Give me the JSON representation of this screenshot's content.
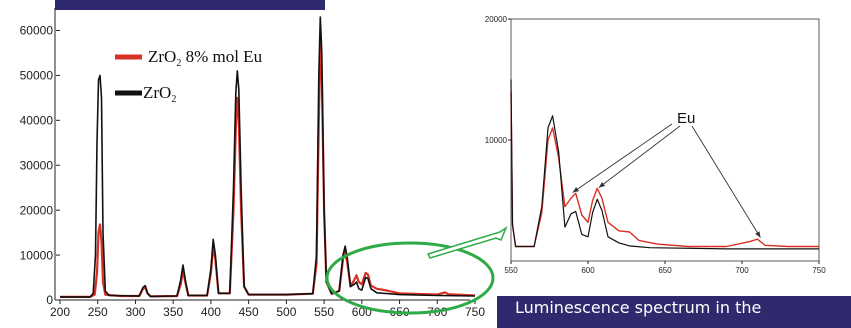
{
  "chart_data": [
    {
      "type": "line",
      "xlim": [
        200,
        750
      ],
      "ylim": [
        0,
        65000
      ],
      "x_ticks": [
        200,
        250,
        300,
        350,
        400,
        450,
        500,
        550,
        600,
        650,
        700,
        750
      ],
      "y_ticks": [
        0,
        10000,
        20000,
        30000,
        40000,
        50000,
        60000
      ],
      "grid": false,
      "legend_position": "top-left",
      "series": [
        {
          "name": "ZrO2 8% mol Eu",
          "color": "#d93025",
          "points": [
            [
              200,
              700
            ],
            [
              240,
              700
            ],
            [
              246,
              1200
            ],
            [
              249,
              6000
            ],
            [
              251,
              15000
            ],
            [
              253,
              16800
            ],
            [
              255,
              13000
            ],
            [
              257,
              4000
            ],
            [
              260,
              1200
            ],
            [
              280,
              900
            ],
            [
              305,
              900
            ],
            [
              310,
              2500
            ],
            [
              313,
              2800
            ],
            [
              316,
              1500
            ],
            [
              320,
              800
            ],
            [
              355,
              900
            ],
            [
              360,
              3500
            ],
            [
              363,
              6500
            ],
            [
              366,
              4000
            ],
            [
              370,
              1000
            ],
            [
              395,
              1000
            ],
            [
              400,
              6000
            ],
            [
              403,
              12000
            ],
            [
              406,
              9000
            ],
            [
              410,
              1500
            ],
            [
              425,
              1500
            ],
            [
              430,
              20000
            ],
            [
              433,
              38000
            ],
            [
              435,
              45000
            ],
            [
              437,
              40000
            ],
            [
              440,
              20000
            ],
            [
              444,
              3000
            ],
            [
              450,
              1200
            ],
            [
              500,
              1200
            ],
            [
              535,
              1400
            ],
            [
              540,
              8000
            ],
            [
              543,
              40000
            ],
            [
              545,
              57000
            ],
            [
              547,
              50000
            ],
            [
              550,
              20000
            ],
            [
              553,
              4000
            ],
            [
              560,
              1400
            ],
            [
              570,
              2000
            ],
            [
              575,
              9000
            ],
            [
              578,
              11000
            ],
            [
              581,
              8000
            ],
            [
              585,
              3000
            ],
            [
              590,
              4500
            ],
            [
              593,
              5500
            ],
            [
              596,
              4000
            ],
            [
              600,
              3500
            ],
            [
              605,
              6000
            ],
            [
              608,
              5700
            ],
            [
              612,
              3200
            ],
            [
              620,
              2500
            ],
            [
              630,
              2200
            ],
            [
              650,
              1500
            ],
            [
              700,
              1200
            ],
            [
              710,
              1700
            ],
            [
              715,
              1300
            ],
            [
              750,
              1000
            ]
          ]
        },
        {
          "name": "ZrO2",
          "color": "#111111",
          "points": [
            [
              200,
              700
            ],
            [
              240,
              700
            ],
            [
              244,
              1500
            ],
            [
              247,
              10000
            ],
            [
              249,
              35000
            ],
            [
              251,
              49000
            ],
            [
              253,
              50000
            ],
            [
              255,
              45000
            ],
            [
              257,
              15000
            ],
            [
              260,
              2000
            ],
            [
              265,
              1000
            ],
            [
              305,
              900
            ],
            [
              310,
              2800
            ],
            [
              313,
              3200
            ],
            [
              316,
              1500
            ],
            [
              320,
              800
            ],
            [
              355,
              900
            ],
            [
              360,
              4500
            ],
            [
              363,
              7800
            ],
            [
              366,
              4500
            ],
            [
              370,
              1000
            ],
            [
              395,
              1000
            ],
            [
              400,
              7000
            ],
            [
              403,
              13500
            ],
            [
              406,
              10000
            ],
            [
              410,
              1500
            ],
            [
              425,
              1500
            ],
            [
              430,
              25000
            ],
            [
              433,
              46000
            ],
            [
              435,
              51000
            ],
            [
              437,
              47000
            ],
            [
              440,
              25000
            ],
            [
              444,
              3000
            ],
            [
              450,
              1200
            ],
            [
              500,
              1200
            ],
            [
              535,
              1400
            ],
            [
              540,
              10000
            ],
            [
              543,
              50000
            ],
            [
              545,
              63000
            ],
            [
              547,
              55000
            ],
            [
              550,
              20000
            ],
            [
              553,
              4000
            ],
            [
              560,
              1400
            ],
            [
              570,
              2000
            ],
            [
              575,
              10000
            ],
            [
              578,
              12000
            ],
            [
              581,
              9000
            ],
            [
              585,
              3000
            ],
            [
              590,
              3500
            ],
            [
              593,
              4000
            ],
            [
              596,
              2500
            ],
            [
              600,
              2200
            ],
            [
              605,
              5000
            ],
            [
              608,
              4800
            ],
            [
              612,
              2500
            ],
            [
              620,
              1600
            ],
            [
              650,
              1200
            ],
            [
              700,
              1000
            ],
            [
              750,
              900
            ]
          ]
        }
      ]
    },
    {
      "type": "line",
      "xlim": [
        550,
        750
      ],
      "ylim": [
        0,
        20000
      ],
      "x_ticks": [
        550,
        600,
        650,
        700,
        750
      ],
      "y_ticks": [
        10000,
        20000
      ],
      "grid": false,
      "annotation": "Eu",
      "annotation_targets_x": [
        590,
        607,
        712
      ],
      "series": [
        {
          "name": "ZrO2 8% mol Eu",
          "color": "#d93025",
          "points": [
            [
              550,
              14000
            ],
            [
              551,
              3000
            ],
            [
              553,
              1200
            ],
            [
              565,
              1200
            ],
            [
              570,
              4000
            ],
            [
              574,
              10000
            ],
            [
              577,
              11000
            ],
            [
              581,
              8500
            ],
            [
              585,
              4500
            ],
            [
              589,
              5200
            ],
            [
              592,
              5600
            ],
            [
              596,
              3800
            ],
            [
              600,
              3200
            ],
            [
              603,
              5000
            ],
            [
              606,
              6000
            ],
            [
              609,
              5200
            ],
            [
              613,
              3200
            ],
            [
              620,
              2500
            ],
            [
              627,
              2400
            ],
            [
              633,
              1700
            ],
            [
              645,
              1400
            ],
            [
              665,
              1200
            ],
            [
              690,
              1200
            ],
            [
              705,
              1600
            ],
            [
              710,
              1800
            ],
            [
              715,
              1300
            ],
            [
              730,
              1200
            ],
            [
              750,
              1200
            ]
          ]
        },
        {
          "name": "ZrO2",
          "color": "#111111",
          "points": [
            [
              550,
              15000
            ],
            [
              551,
              3000
            ],
            [
              553,
              1200
            ],
            [
              565,
              1200
            ],
            [
              570,
              4500
            ],
            [
              574,
              11000
            ],
            [
              577,
              12000
            ],
            [
              581,
              9000
            ],
            [
              585,
              2800
            ],
            [
              589,
              3900
            ],
            [
              592,
              4100
            ],
            [
              596,
              2200
            ],
            [
              600,
              2000
            ],
            [
              603,
              4000
            ],
            [
              606,
              5100
            ],
            [
              609,
              4200
            ],
            [
              613,
              2000
            ],
            [
              620,
              1500
            ],
            [
              627,
              1250
            ],
            [
              640,
              1100
            ],
            [
              690,
              1000
            ],
            [
              750,
              1000
            ]
          ]
        }
      ]
    }
  ],
  "caption": "Luminescence spectrum in the"
}
